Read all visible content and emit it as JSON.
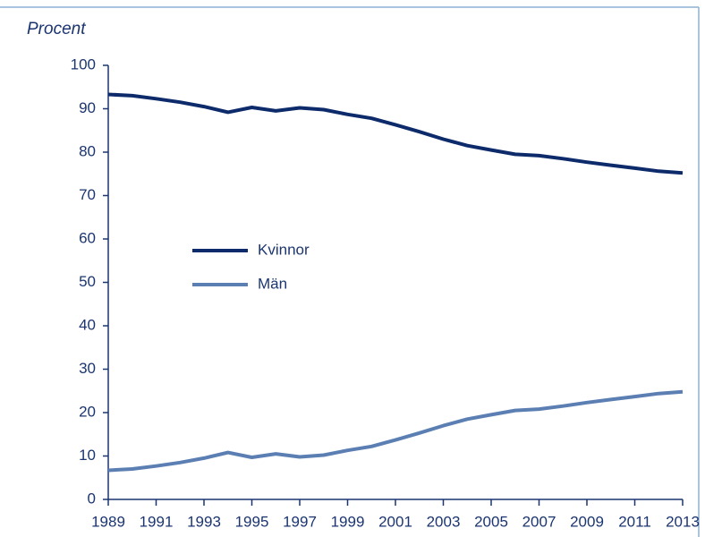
{
  "chart_data": {
    "type": "line",
    "y_label": "Procent",
    "x": [
      1989,
      1990,
      1991,
      1992,
      1993,
      1994,
      1995,
      1996,
      1997,
      1998,
      1999,
      2000,
      2001,
      2002,
      2003,
      2004,
      2005,
      2006,
      2007,
      2008,
      2009,
      2010,
      2011,
      2012,
      2013
    ],
    "series": [
      {
        "name": "Kvinnor",
        "color": "#0d2b6b",
        "values": [
          93.3,
          93.0,
          92.3,
          91.5,
          90.5,
          89.2,
          90.3,
          89.5,
          90.2,
          89.8,
          88.7,
          87.8,
          86.3,
          84.7,
          83.0,
          81.5,
          80.5,
          79.5,
          79.2,
          78.5,
          77.7,
          77.0,
          76.3,
          75.6,
          75.2
        ]
      },
      {
        "name": "Män",
        "color": "#5b7fb3",
        "values": [
          6.7,
          7.0,
          7.7,
          8.5,
          9.5,
          10.8,
          9.7,
          10.5,
          9.8,
          10.2,
          11.3,
          12.2,
          13.7,
          15.3,
          17.0,
          18.5,
          19.5,
          20.5,
          20.8,
          21.5,
          22.3,
          23.0,
          23.7,
          24.4,
          24.8
        ]
      }
    ],
    "xlim": [
      1989,
      2013
    ],
    "xticks": [
      1989,
      1991,
      1993,
      1995,
      1997,
      1999,
      2001,
      2003,
      2005,
      2007,
      2009,
      2011,
      2013
    ],
    "ylim": [
      0,
      100
    ],
    "yticks": [
      0,
      10,
      20,
      30,
      40,
      50,
      60,
      70,
      80,
      90,
      100
    ],
    "grid": false,
    "legend": "center-left"
  }
}
